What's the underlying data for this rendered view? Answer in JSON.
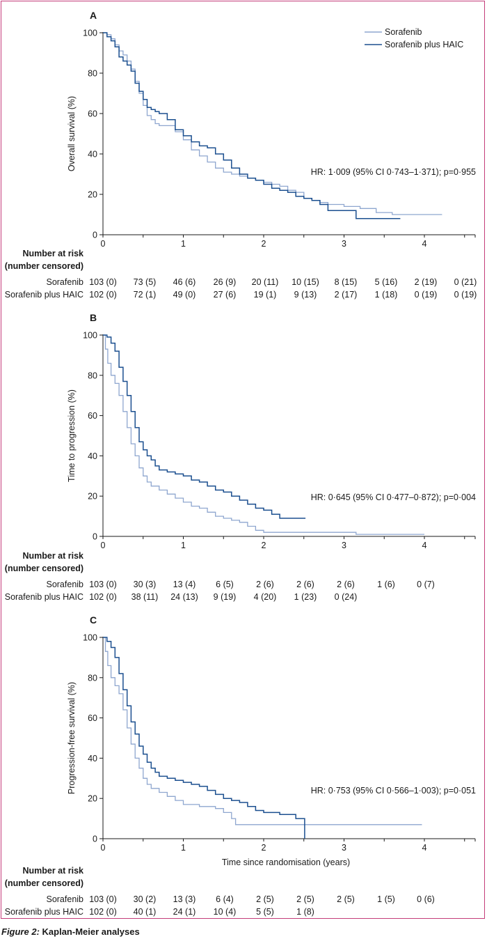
{
  "colors": {
    "frame": "#c43d7a",
    "sorafenib": "#8ea6cf",
    "haic": "#1b4f8f",
    "axis": "#1a1a1a"
  },
  "caption": {
    "figure": "Figure 2:",
    "title": "Kaplan-Meier analyses"
  },
  "legend": {
    "sorafenib": "Sorafenib",
    "haic": "Sorafenib plus HAIC"
  },
  "risk_header": {
    "line1": "Number at risk",
    "line2": "(number censored)"
  },
  "chart_data": [
    {
      "type": "line",
      "panel": "A",
      "ylabel": "Overall survival (%)",
      "xlabel": "",
      "xlim": [
        0,
        4.6
      ],
      "ylim": [
        0,
        100
      ],
      "xticks": [
        0,
        1,
        2,
        3,
        4
      ],
      "yticks": [
        0,
        20,
        40,
        60,
        80,
        100
      ],
      "annotation": "HR: 1·009 (95% CI 0·743–1·371); p=0·955",
      "series": [
        {
          "name": "Sorafenib",
          "x": [
            0,
            0.05,
            0.1,
            0.15,
            0.2,
            0.25,
            0.3,
            0.35,
            0.4,
            0.45,
            0.5,
            0.55,
            0.6,
            0.65,
            0.7,
            0.8,
            0.9,
            1.0,
            1.1,
            1.2,
            1.3,
            1.4,
            1.5,
            1.6,
            1.7,
            1.8,
            1.9,
            2.0,
            2.1,
            2.2,
            2.3,
            2.4,
            2.5,
            2.6,
            2.7,
            2.8,
            3.0,
            3.2,
            3.4,
            3.6,
            3.8,
            4.0,
            4.22
          ],
          "y": [
            100,
            99,
            97,
            94,
            91,
            89,
            86,
            82,
            76,
            70,
            64,
            59,
            57,
            55,
            54,
            54,
            51,
            47,
            42,
            39,
            36,
            33,
            31,
            30,
            29,
            28,
            27,
            26,
            25,
            24,
            22,
            21,
            18,
            17,
            16,
            15,
            14,
            13,
            11,
            10,
            10,
            10,
            10
          ]
        },
        {
          "name": "Sorafenib plus HAIC",
          "x": [
            0,
            0.05,
            0.1,
            0.15,
            0.2,
            0.25,
            0.3,
            0.35,
            0.4,
            0.45,
            0.5,
            0.55,
            0.6,
            0.65,
            0.7,
            0.8,
            0.9,
            1.0,
            1.1,
            1.2,
            1.3,
            1.4,
            1.5,
            1.6,
            1.7,
            1.8,
            1.9,
            2.0,
            2.1,
            2.2,
            2.3,
            2.4,
            2.5,
            2.6,
            2.7,
            2.8,
            3.0,
            3.15,
            3.3,
            3.5,
            3.7
          ],
          "y": [
            100,
            98,
            96,
            93,
            88,
            86,
            84,
            81,
            75,
            71,
            67,
            63,
            62,
            61,
            60,
            57,
            52,
            49,
            46,
            44,
            43,
            40,
            37,
            33,
            30,
            28,
            27,
            25,
            23,
            22,
            21,
            19,
            18,
            17,
            15,
            12,
            12,
            8,
            8,
            8,
            8
          ]
        }
      ],
      "at_risk": {
        "Sorafenib": [
          "103 (0)",
          "73 (5)",
          "46 (6)",
          "26 (9)",
          "20 (11)",
          "10 (15)",
          "8 (15)",
          "5 (16)",
          "2 (19)",
          "0 (21)"
        ],
        "Sorafenib plus HAIC": [
          "102 (0)",
          "72 (1)",
          "49 (0)",
          "27 (6)",
          "19 (1)",
          "9 (13)",
          "2 (17)",
          "1 (18)",
          "0 (19)",
          "0 (19)"
        ]
      }
    },
    {
      "type": "line",
      "panel": "B",
      "ylabel": "Time to progression (%)",
      "xlabel": "",
      "xlim": [
        0,
        4.6
      ],
      "ylim": [
        0,
        100
      ],
      "xticks": [
        0,
        1,
        2,
        3,
        4
      ],
      "yticks": [
        0,
        20,
        40,
        60,
        80,
        100
      ],
      "annotation": "HR: 0·645 (95% CI 0·477–0·872); p=0·004",
      "series": [
        {
          "name": "Sorafenib",
          "x": [
            0,
            0.03,
            0.06,
            0.1,
            0.15,
            0.2,
            0.25,
            0.3,
            0.35,
            0.4,
            0.45,
            0.5,
            0.55,
            0.6,
            0.7,
            0.8,
            0.9,
            1.0,
            1.1,
            1.2,
            1.3,
            1.4,
            1.5,
            1.6,
            1.7,
            1.8,
            1.9,
            2.0,
            2.2,
            2.5,
            2.8,
            3.1,
            3.15,
            3.5,
            4.0
          ],
          "y": [
            100,
            93,
            86,
            80,
            76,
            70,
            62,
            54,
            46,
            40,
            34,
            30,
            27,
            25,
            23,
            21,
            19,
            17,
            15,
            14,
            12,
            10,
            9,
            8,
            7,
            5,
            3,
            2,
            2,
            2,
            2,
            2,
            1,
            1,
            1
          ]
        },
        {
          "name": "Sorafenib plus HAIC",
          "x": [
            0,
            0.05,
            0.1,
            0.15,
            0.2,
            0.25,
            0.3,
            0.35,
            0.4,
            0.45,
            0.5,
            0.55,
            0.6,
            0.65,
            0.7,
            0.8,
            0.9,
            1.0,
            1.1,
            1.2,
            1.3,
            1.4,
            1.5,
            1.6,
            1.7,
            1.8,
            1.9,
            2.0,
            2.1,
            2.2,
            2.3,
            2.52
          ],
          "y": [
            100,
            99,
            96,
            92,
            84,
            77,
            70,
            62,
            54,
            47,
            43,
            40,
            38,
            35,
            33,
            32,
            31,
            30,
            28,
            27,
            25,
            23,
            22,
            20,
            18,
            16,
            14,
            13,
            11,
            9,
            9,
            9
          ]
        }
      ],
      "at_risk": {
        "Sorafenib": [
          "103 (0)",
          "30 (3)",
          "13 (4)",
          "6 (5)",
          "2 (6)",
          "2 (6)",
          "2 (6)",
          "1 (6)",
          "0 (7)"
        ],
        "Sorafenib plus HAIC": [
          "102 (0)",
          "38 (11)",
          "24 (13)",
          "9 (19)",
          "4 (20)",
          "1 (23)",
          "0 (24)"
        ]
      }
    },
    {
      "type": "line",
      "panel": "C",
      "ylabel": "Progression-free survival (%)",
      "xlabel": "Time since randomisation (years)",
      "xlim": [
        0,
        4.6
      ],
      "ylim": [
        0,
        100
      ],
      "xticks": [
        0,
        1,
        2,
        3,
        4
      ],
      "yticks": [
        0,
        20,
        40,
        60,
        80,
        100
      ],
      "annotation": "HR: 0·753 (95% CI 0·566–1·003); p=0·051",
      "series": [
        {
          "name": "Sorafenib",
          "x": [
            0,
            0.03,
            0.06,
            0.1,
            0.15,
            0.2,
            0.25,
            0.3,
            0.35,
            0.4,
            0.45,
            0.5,
            0.55,
            0.6,
            0.7,
            0.8,
            0.9,
            1.0,
            1.2,
            1.4,
            1.5,
            1.6,
            1.65,
            1.7,
            2.0,
            2.5,
            3.0,
            3.5,
            3.97
          ],
          "y": [
            100,
            93,
            86,
            80,
            76,
            72,
            64,
            55,
            47,
            40,
            35,
            30,
            27,
            25,
            23,
            21,
            19,
            17,
            16,
            15,
            13,
            10,
            7,
            7,
            7,
            7,
            7,
            7,
            7
          ]
        },
        {
          "name": "Sorafenib plus HAIC",
          "x": [
            0,
            0.05,
            0.1,
            0.15,
            0.2,
            0.25,
            0.3,
            0.35,
            0.4,
            0.45,
            0.5,
            0.55,
            0.6,
            0.65,
            0.7,
            0.8,
            0.9,
            1.0,
            1.1,
            1.2,
            1.3,
            1.4,
            1.5,
            1.6,
            1.7,
            1.8,
            1.9,
            2.0,
            2.2,
            2.4,
            2.5,
            2.51
          ],
          "y": [
            100,
            98,
            95,
            90,
            82,
            74,
            66,
            58,
            52,
            46,
            42,
            38,
            35,
            33,
            31,
            30,
            29,
            28,
            27,
            26,
            24,
            22,
            20,
            19,
            18,
            16,
            14,
            13,
            12,
            10,
            10,
            0
          ]
        }
      ],
      "at_risk": {
        "Sorafenib": [
          "103 (0)",
          "30 (2)",
          "13 (3)",
          "6 (4)",
          "2 (5)",
          "2 (5)",
          "2 (5)",
          "1 (5)",
          "0 (6)"
        ],
        "Sorafenib plus HAIC": [
          "102 (0)",
          "40 (1)",
          "24 (1)",
          "10 (4)",
          "5 (5)",
          "1 (8)"
        ]
      }
    }
  ]
}
